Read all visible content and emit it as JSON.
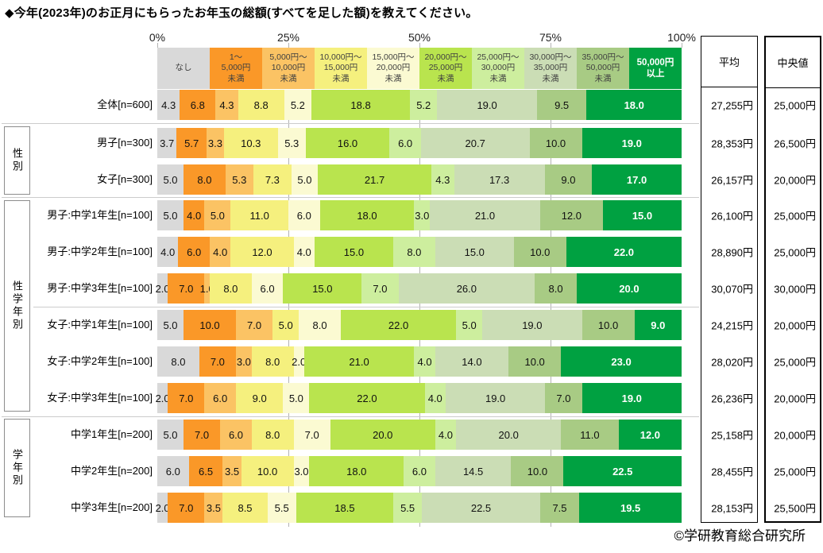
{
  "title": "◆今年(2023年)のお正月にもらったお年玉の総額(すべてを足した額)を教えてください。",
  "footer": "©学研教育総合研究所",
  "columns": {
    "mean": "平均",
    "median": "中央値"
  },
  "axis": {
    "ticks": [
      "0%",
      "25%",
      "50%",
      "75%",
      "100%"
    ]
  },
  "chart_data": {
    "type": "bar",
    "stacked": true,
    "orientation": "horizontal",
    "unit": "%",
    "xlim": [
      0,
      100
    ],
    "categories": [
      "なし",
      "1～5,000円未満",
      "5,000円～10,000円未満",
      "10,000円～15,000円未満",
      "15,000円～20,000円未満",
      "20,000円～25,000円未満",
      "25,000円～30,000円未満",
      "30,000円～35,000円未満",
      "35,000円～50,000円未満",
      "50,000円以上"
    ],
    "legend": [
      {
        "lines": [
          "なし"
        ],
        "color": "#D9D9D9",
        "text": "#404040"
      },
      {
        "lines": [
          "1～",
          "5,000円",
          "未満"
        ],
        "color": "#FA9828",
        "text": "#404040"
      },
      {
        "lines": [
          "5,000円～",
          "10,000円",
          "未満"
        ],
        "color": "#FBC364",
        "text": "#404040"
      },
      {
        "lines": [
          "10,000円～",
          "15,000円",
          "未満"
        ],
        "color": "#F5F07E",
        "text": "#404040"
      },
      {
        "lines": [
          "15,000円～",
          "20,000円",
          "未満"
        ],
        "color": "#FBFAD2",
        "text": "#404040"
      },
      {
        "lines": [
          "20,000円～",
          "25,000円",
          "未満"
        ],
        "color": "#B9E44E",
        "text": "#404040"
      },
      {
        "lines": [
          "25,000円～",
          "30,000円",
          "未満"
        ],
        "color": "#CDEE9E",
        "text": "#404040"
      },
      {
        "lines": [
          "30,000円～",
          "35,000円",
          "未満"
        ],
        "color": "#CBDDB5",
        "text": "#404040"
      },
      {
        "lines": [
          "35,000円～",
          "50,000円",
          "未満"
        ],
        "color": "#A8CB84",
        "text": "#404040"
      },
      {
        "lines": [
          "50,000円",
          "以上"
        ],
        "color": "#00A141",
        "text": "#FFFFFF",
        "bold": true
      }
    ],
    "groups": [
      {
        "label": "",
        "rows": [
          {
            "label": "全体[n=600]",
            "values": [
              4.3,
              6.8,
              4.3,
              8.8,
              5.2,
              18.8,
              5.2,
              19.0,
              9.5,
              18.0
            ],
            "mean": "27,255円",
            "median": "25,000円"
          }
        ]
      },
      {
        "label": "性別",
        "rows": [
          {
            "label": "男子[n=300]",
            "values": [
              3.7,
              5.7,
              3.3,
              10.3,
              5.3,
              16.0,
              6.0,
              20.7,
              10.0,
              19.0
            ],
            "mean": "28,353円",
            "median": "26,500円"
          },
          {
            "label": "女子[n=300]",
            "values": [
              5.0,
              8.0,
              5.3,
              7.3,
              5.0,
              21.7,
              4.3,
              17.3,
              9.0,
              17.0
            ],
            "mean": "26,157円",
            "median": "20,000円"
          }
        ]
      },
      {
        "label": "性学年別",
        "rows": [
          {
            "label": "男子:中学1年生[n=100]",
            "values": [
              5.0,
              4.0,
              5.0,
              11.0,
              6.0,
              18.0,
              3.0,
              21.0,
              12.0,
              15.0
            ],
            "mean": "26,100円",
            "median": "25,000円"
          },
          {
            "label": "男子:中学2年生[n=100]",
            "values": [
              4.0,
              6.0,
              4.0,
              12.0,
              4.0,
              15.0,
              8.0,
              15.0,
              10.0,
              22.0
            ],
            "mean": "28,890円",
            "median": "25,000円"
          },
          {
            "label": "男子:中学3年生[n=100]",
            "values": [
              2.0,
              7.0,
              1.0,
              8.0,
              6.0,
              15.0,
              7.0,
              26.0,
              8.0,
              20.0
            ],
            "mean": "30,070円",
            "median": "30,000円"
          },
          {
            "label": "女子:中学1年生[n=100]",
            "values": [
              5.0,
              10.0,
              7.0,
              5.0,
              8.0,
              22.0,
              5.0,
              19.0,
              10.0,
              9.0
            ],
            "mean": "24,215円",
            "median": "20,000円"
          },
          {
            "label": "女子:中学2年生[n=100]",
            "values": [
              8.0,
              7.0,
              3.0,
              8.0,
              2.0,
              21.0,
              4.0,
              14.0,
              10.0,
              23.0
            ],
            "mean": "28,020円",
            "median": "25,000円"
          },
          {
            "label": "女子:中学3年生[n=100]",
            "values": [
              2.0,
              7.0,
              6.0,
              9.0,
              5.0,
              22.0,
              4.0,
              19.0,
              7.0,
              19.0
            ],
            "mean": "26,236円",
            "median": "20,000円"
          }
        ]
      },
      {
        "label": "学年別",
        "rows": [
          {
            "label": "中学1年生[n=200]",
            "values": [
              5.0,
              7.0,
              6.0,
              8.0,
              7.0,
              20.0,
              4.0,
              20.0,
              11.0,
              12.0
            ],
            "mean": "25,158円",
            "median": "20,000円"
          },
          {
            "label": "中学2年生[n=200]",
            "values": [
              6.0,
              6.5,
              3.5,
              10.0,
              3.0,
              18.0,
              6.0,
              14.5,
              10.0,
              22.5
            ],
            "mean": "28,455円",
            "median": "25,000円"
          },
          {
            "label": "中学3年生[n=200]",
            "values": [
              2.0,
              7.0,
              3.5,
              8.5,
              5.5,
              18.5,
              5.5,
              22.5,
              7.5,
              19.5
            ],
            "mean": "28,153円",
            "median": "25,500円"
          }
        ]
      }
    ]
  }
}
